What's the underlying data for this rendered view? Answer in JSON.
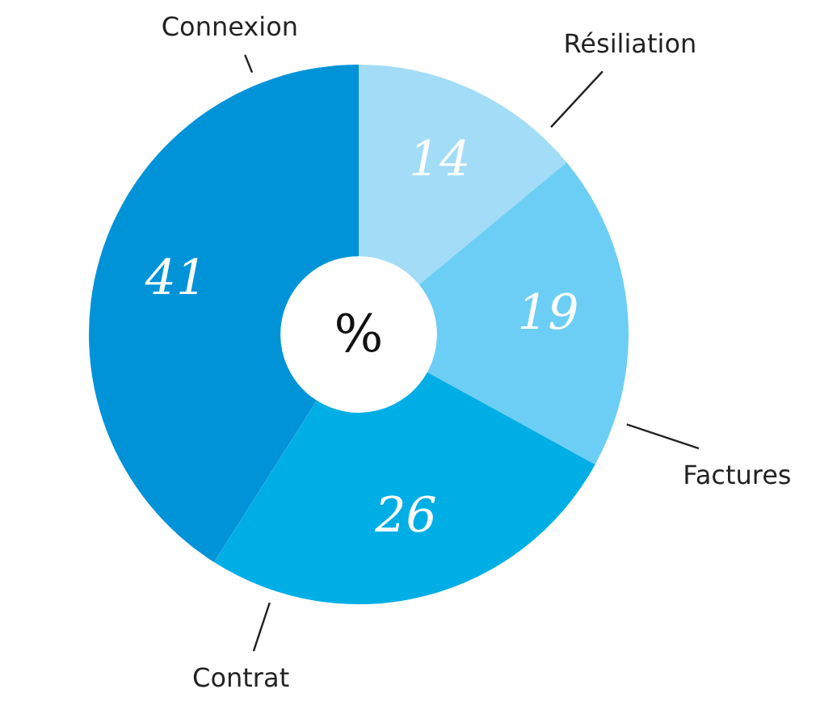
{
  "chart_data": {
    "type": "donut",
    "categories": [
      "Résiliation",
      "Factures",
      "Contrat",
      "Connexion"
    ],
    "values": [
      14,
      19,
      26,
      41
    ],
    "colors": [
      "#a3dcf7",
      "#6dcef5",
      "#00aee6",
      "#0093d8"
    ],
    "data_labels": true,
    "legend": false,
    "annotations": [
      "%"
    ]
  }
}
